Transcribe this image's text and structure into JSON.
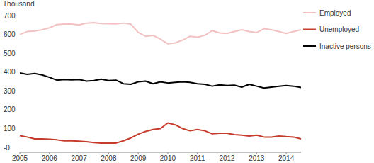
{
  "chart_data": {
    "type": "line",
    "y_label": "Thousand",
    "x": [
      2005,
      2005.25,
      2005.5,
      2005.75,
      2006,
      2006.25,
      2006.5,
      2006.75,
      2007,
      2007.25,
      2007.5,
      2007.75,
      2008,
      2008.25,
      2008.5,
      2008.75,
      2009,
      2009.25,
      2009.5,
      2009.75,
      2010,
      2010.25,
      2010.5,
      2010.75,
      2011,
      2011.25,
      2011.5,
      2011.75,
      2012,
      2012.25,
      2012.5,
      2012.75,
      2013,
      2013.25,
      2013.5,
      2013.75,
      2014,
      2014.25,
      2014.5
    ],
    "series": [
      {
        "name": "Employed",
        "color": "#f2c2c2",
        "values": [
          600,
          615,
          618,
          625,
          635,
          652,
          655,
          655,
          650,
          660,
          662,
          658,
          657,
          656,
          660,
          655,
          610,
          590,
          595,
          575,
          550,
          555,
          570,
          590,
          585,
          595,
          620,
          608,
          605,
          615,
          625,
          615,
          610,
          630,
          625,
          615,
          605,
          615,
          625
        ]
      },
      {
        "name": "Unemployed",
        "color": "#c63b2b",
        "values": [
          62,
          55,
          45,
          45,
          43,
          40,
          35,
          35,
          33,
          30,
          25,
          23,
          23,
          23,
          35,
          50,
          70,
          85,
          95,
          100,
          130,
          120,
          100,
          88,
          95,
          88,
          72,
          75,
          75,
          68,
          65,
          60,
          65,
          55,
          55,
          60,
          57,
          55,
          45
        ]
      },
      {
        "name": "Inactive persons",
        "color": "#000000",
        "values": [
          395,
          388,
          392,
          385,
          372,
          357,
          360,
          358,
          360,
          352,
          355,
          362,
          355,
          357,
          338,
          335,
          348,
          352,
          338,
          348,
          342,
          345,
          348,
          345,
          338,
          335,
          325,
          332,
          328,
          330,
          320,
          335,
          325,
          315,
          320,
          325,
          328,
          325,
          318
        ]
      }
    ],
    "xlim": [
      2005,
      2014.5
    ],
    "xticks": [
      2005,
      2006,
      2007,
      2008,
      2009,
      2010,
      2011,
      2012,
      2013,
      2014
    ],
    "ylim": [
      0,
      700
    ],
    "yticks": [
      {
        "value": 0,
        "label": "-0"
      },
      100,
      200,
      300,
      400,
      500,
      600,
      700
    ],
    "grid": false,
    "legend": "right"
  }
}
